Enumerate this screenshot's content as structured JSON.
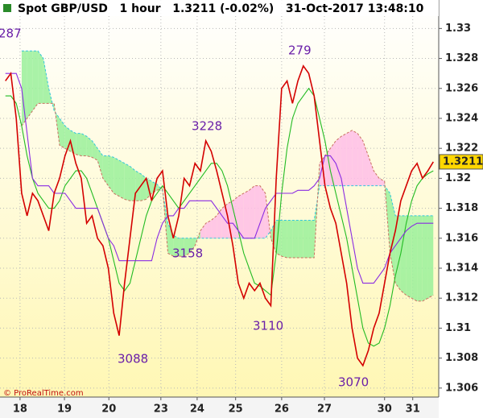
{
  "chart_data": {
    "type": "line",
    "title": "Spot GBP/USD   1 hour   1.3211 (-0.02%)   31-Oct-2017 13:48:10",
    "footer": "© ProRealTime.com",
    "x": [
      0,
      1,
      2,
      3,
      4,
      5,
      6,
      7,
      8,
      9,
      10,
      11,
      12,
      13,
      14,
      15,
      16,
      17,
      18,
      19,
      20,
      21,
      22,
      23,
      24,
      25,
      26,
      27,
      28,
      29,
      30,
      31,
      32,
      33,
      34,
      35,
      36,
      37,
      38,
      39,
      40,
      41,
      42,
      43,
      44,
      45,
      46,
      47,
      48,
      49,
      50,
      51,
      52,
      53,
      54,
      55,
      56,
      57,
      58,
      59,
      60,
      61,
      62,
      63,
      64,
      65,
      66,
      67,
      68,
      69,
      70,
      71,
      72,
      73,
      74,
      75,
      76,
      77,
      78,
      79
    ],
    "xlim": [
      -1,
      80
    ],
    "xticks": [
      {
        "value": 2.7,
        "label": "18"
      },
      {
        "value": 10.9,
        "label": "19"
      },
      {
        "value": 19.1,
        "label": "20"
      },
      {
        "value": 28.7,
        "label": "23"
      },
      {
        "value": 35.4,
        "label": "24"
      },
      {
        "value": 42.5,
        "label": "25"
      },
      {
        "value": 51.0,
        "label": "26"
      },
      {
        "value": 58.9,
        "label": "27"
      },
      {
        "value": 70.0,
        "label": "30"
      },
      {
        "value": 75.2,
        "label": "31"
      }
    ],
    "ylim": [
      1.3054,
      1.3319
    ],
    "yticks": [
      1.306,
      1.308,
      1.31,
      1.312,
      1.314,
      1.316,
      1.318,
      1.32,
      1.322,
      1.324,
      1.326,
      1.328,
      1.33
    ],
    "grid": true,
    "series": [
      {
        "color": "#d40000",
        "values": [
          1.3265,
          1.327,
          1.324,
          1.319,
          1.3175,
          1.319,
          1.3185,
          1.3175,
          1.3165,
          1.319,
          1.32,
          1.3215,
          1.3225,
          1.321,
          1.32,
          1.317,
          1.3175,
          1.316,
          1.3155,
          1.314,
          1.311,
          1.3095,
          1.313,
          1.316,
          1.319,
          1.3195,
          1.32,
          1.3185,
          1.32,
          1.3205,
          1.3175,
          1.316,
          1.3175,
          1.32,
          1.3195,
          1.321,
          1.3205,
          1.3225,
          1.3218,
          1.3205,
          1.319,
          1.3175,
          1.3155,
          1.313,
          1.312,
          1.313,
          1.3125,
          1.313,
          1.312,
          1.3115,
          1.32,
          1.326,
          1.3265,
          1.325,
          1.3265,
          1.3275,
          1.327,
          1.3255,
          1.3225,
          1.3195,
          1.318,
          1.317,
          1.315,
          1.313,
          1.31,
          1.308,
          1.3075,
          1.3085,
          1.31,
          1.311,
          1.313,
          1.315,
          1.3165,
          1.3185,
          1.3195,
          1.3205,
          1.321,
          1.32,
          1.3205,
          1.3211
        ]
      },
      {
        "color": "#22bb22",
        "values": [
          1.3255,
          1.3255,
          1.325,
          1.3235,
          1.3215,
          1.32,
          1.319,
          1.3185,
          1.318,
          1.318,
          1.3185,
          1.3195,
          1.32,
          1.3205,
          1.3205,
          1.32,
          1.319,
          1.318,
          1.317,
          1.316,
          1.3145,
          1.313,
          1.3125,
          1.313,
          1.3145,
          1.316,
          1.3175,
          1.3185,
          1.319,
          1.3195,
          1.319,
          1.3185,
          1.318,
          1.3185,
          1.319,
          1.3195,
          1.32,
          1.3205,
          1.321,
          1.321,
          1.3205,
          1.3195,
          1.318,
          1.3165,
          1.315,
          1.314,
          1.313,
          1.3128,
          1.3125,
          1.3122,
          1.315,
          1.319,
          1.322,
          1.324,
          1.325,
          1.3255,
          1.326,
          1.3255,
          1.324,
          1.3225,
          1.3205,
          1.319,
          1.3175,
          1.316,
          1.314,
          1.312,
          1.31,
          1.309,
          1.3088,
          1.309,
          1.31,
          1.3115,
          1.3135,
          1.315,
          1.317,
          1.3185,
          1.3195,
          1.32,
          1.3203,
          1.3205
        ]
      },
      {
        "color": "#8a2be2",
        "values": [
          1.327,
          1.327,
          1.327,
          1.326,
          1.323,
          1.32,
          1.3195,
          1.3195,
          1.3195,
          1.319,
          1.319,
          1.319,
          1.3185,
          1.318,
          1.318,
          1.318,
          1.318,
          1.318,
          1.317,
          1.316,
          1.3155,
          1.3145,
          1.3145,
          1.3145,
          1.3145,
          1.3145,
          1.3145,
          1.3145,
          1.316,
          1.317,
          1.3175,
          1.3175,
          1.318,
          1.318,
          1.3185,
          1.3185,
          1.3185,
          1.3185,
          1.3185,
          1.318,
          1.3175,
          1.317,
          1.317,
          1.3165,
          1.316,
          1.316,
          1.316,
          1.317,
          1.318,
          1.3185,
          1.319,
          1.319,
          1.319,
          1.319,
          1.3192,
          1.3192,
          1.3192,
          1.3195,
          1.32,
          1.3215,
          1.3215,
          1.321,
          1.32,
          1.318,
          1.316,
          1.314,
          1.313,
          1.313,
          1.313,
          1.3135,
          1.314,
          1.315,
          1.3155,
          1.316,
          1.3165,
          1.3168,
          1.317,
          1.317,
          1.317,
          1.317
        ]
      }
    ],
    "cloud": {
      "span_a_color": "#33c6dd",
      "span_b_color": "#c87060",
      "up_color": "#9af09a",
      "down_color": "#ffbde8",
      "span_a": [
        null,
        null,
        null,
        1.3285,
        1.3285,
        1.3285,
        1.3285,
        1.328,
        1.326,
        1.3245,
        1.324,
        1.3235,
        1.3232,
        1.323,
        1.323,
        1.3228,
        1.3225,
        1.322,
        1.3215,
        1.3215,
        1.3214,
        1.3212,
        1.321,
        1.3208,
        1.3205,
        1.3203,
        1.32,
        1.3198,
        1.3196,
        1.3192,
        1.317,
        1.3162,
        1.316,
        1.316,
        1.316,
        1.316,
        1.316,
        1.316,
        1.316,
        1.316,
        1.316,
        1.316,
        1.316,
        1.316,
        1.316,
        1.316,
        1.316,
        1.316,
        1.316,
        1.3165,
        1.3172,
        1.3172,
        1.3172,
        1.3172,
        1.3172,
        1.3172,
        1.3172,
        1.3172,
        1.3195,
        1.3195,
        1.3195,
        1.3195,
        1.3195,
        1.3195,
        1.3195,
        1.3195,
        1.3195,
        1.3195,
        1.3195,
        1.3195,
        1.3195,
        1.319,
        1.3175,
        1.3175,
        1.3175,
        1.3175,
        1.3175,
        1.3175,
        1.3175,
        1.3175
      ],
      "span_b": [
        null,
        null,
        null,
        1.3235,
        1.324,
        1.3245,
        1.325,
        1.325,
        1.325,
        1.325,
        1.3222,
        1.322,
        1.3218,
        1.3216,
        1.3215,
        1.3215,
        1.3214,
        1.3212,
        1.32,
        1.3195,
        1.319,
        1.3188,
        1.3186,
        1.3185,
        1.3185,
        1.3185,
        1.3186,
        1.319,
        1.3192,
        1.3194,
        1.315,
        1.3148,
        1.3148,
        1.3148,
        1.315,
        1.3155,
        1.3165,
        1.317,
        1.3172,
        1.3175,
        1.318,
        1.3183,
        1.3185,
        1.3188,
        1.319,
        1.3192,
        1.3195,
        1.3195,
        1.319,
        1.316,
        1.315,
        1.3148,
        1.3147,
        1.3147,
        1.3147,
        1.3147,
        1.3147,
        1.3147,
        1.321,
        1.3215,
        1.322,
        1.3225,
        1.3228,
        1.323,
        1.3232,
        1.323,
        1.3225,
        1.3215,
        1.3205,
        1.32,
        1.3198,
        1.315,
        1.313,
        1.3125,
        1.3122,
        1.312,
        1.3118,
        1.3118,
        1.312,
        1.3122
      ]
    },
    "annotations": [
      "287",
      "279",
      "3228",
      "3158",
      "3110",
      "3088",
      "3070"
    ],
    "last_value_color": "#ffd700"
  }
}
